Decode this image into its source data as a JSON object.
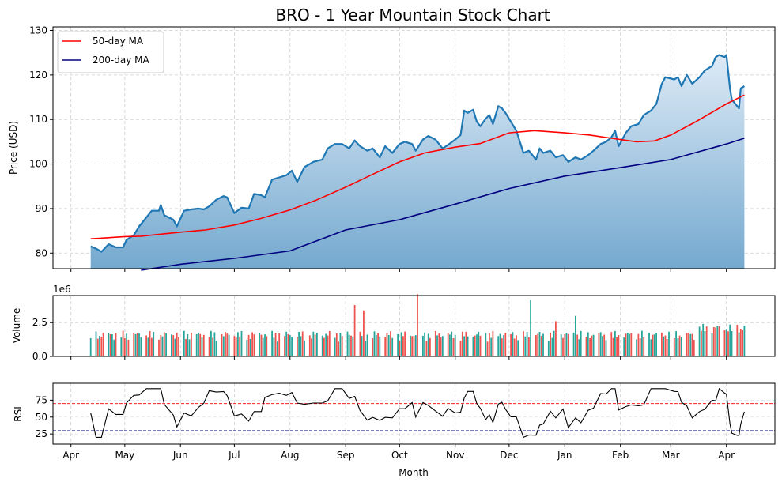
{
  "chart_data": {
    "type": "line",
    "title": "BRO - 1 Year Mountain Stock Chart",
    "xlabel": "Month",
    "month_ticks": [
      {
        "label": "Apr",
        "date": "2024-04-01"
      },
      {
        "label": "May",
        "date": "2024-05-01"
      },
      {
        "label": "Jun",
        "date": "2024-06-01"
      },
      {
        "label": "Jul",
        "date": "2024-07-01"
      },
      {
        "label": "Aug",
        "date": "2024-08-01"
      },
      {
        "label": "Sep",
        "date": "2024-09-01"
      },
      {
        "label": "Oct",
        "date": "2024-10-01"
      },
      {
        "label": "Nov",
        "date": "2024-11-01"
      },
      {
        "label": "Dec",
        "date": "2024-12-01"
      },
      {
        "label": "Jan",
        "date": "2025-01-01"
      },
      {
        "label": "Feb",
        "date": "2025-02-01"
      },
      {
        "label": "Mar",
        "date": "2025-03-01"
      },
      {
        "label": "Apr",
        "date": "2025-04-01"
      }
    ],
    "xlim": [
      "2024-03-22",
      "2025-04-28"
    ],
    "grid": true,
    "price_panel": {
      "ylabel": "Price (USD)",
      "ylim": [
        76.5,
        130.8
      ],
      "yticks": [
        80,
        90,
        100,
        110,
        120,
        130
      ],
      "legend_position": "top-left",
      "close": [
        [
          "2024-04-12",
          81.5
        ],
        [
          "2024-04-15",
          81.0
        ],
        [
          "2024-04-18",
          80.3
        ],
        [
          "2024-04-22",
          82.0
        ],
        [
          "2024-04-26",
          81.3
        ],
        [
          "2024-04-30",
          81.3
        ],
        [
          "2024-05-02",
          83.0
        ],
        [
          "2024-05-06",
          84.0
        ],
        [
          "2024-05-09",
          86.0
        ],
        [
          "2024-05-13",
          88.0
        ],
        [
          "2024-05-16",
          89.5
        ],
        [
          "2024-05-20",
          89.5
        ],
        [
          "2024-05-21",
          90.8
        ],
        [
          "2024-05-23",
          88.5
        ],
        [
          "2024-05-28",
          87.5
        ],
        [
          "2024-05-30",
          86.0
        ],
        [
          "2024-06-03",
          89.5
        ],
        [
          "2024-06-07",
          89.8
        ],
        [
          "2024-06-11",
          90.0
        ],
        [
          "2024-06-14",
          89.8
        ],
        [
          "2024-06-17",
          90.5
        ],
        [
          "2024-06-21",
          92.0
        ],
        [
          "2024-06-25",
          92.8
        ],
        [
          "2024-06-27",
          92.5
        ],
        [
          "2024-07-01",
          89.0
        ],
        [
          "2024-07-05",
          90.2
        ],
        [
          "2024-07-09",
          90.0
        ],
        [
          "2024-07-12",
          93.3
        ],
        [
          "2024-07-16",
          93.0
        ],
        [
          "2024-07-18",
          92.5
        ],
        [
          "2024-07-22",
          96.5
        ],
        [
          "2024-07-26",
          97.0
        ],
        [
          "2024-07-30",
          97.5
        ],
        [
          "2024-08-02",
          98.5
        ],
        [
          "2024-08-05",
          96.0
        ],
        [
          "2024-08-09",
          99.3
        ],
        [
          "2024-08-14",
          100.5
        ],
        [
          "2024-08-19",
          101.0
        ],
        [
          "2024-08-22",
          103.5
        ],
        [
          "2024-08-26",
          104.5
        ],
        [
          "2024-08-30",
          104.5
        ],
        [
          "2024-09-03",
          103.5
        ],
        [
          "2024-09-06",
          105.3
        ],
        [
          "2024-09-09",
          104.0
        ],
        [
          "2024-09-13",
          103.0
        ],
        [
          "2024-09-16",
          103.5
        ],
        [
          "2024-09-20",
          101.5
        ],
        [
          "2024-09-23",
          104.0
        ],
        [
          "2024-09-27",
          102.5
        ],
        [
          "2024-10-01",
          104.5
        ],
        [
          "2024-10-04",
          105.0
        ],
        [
          "2024-10-08",
          104.5
        ],
        [
          "2024-10-10",
          103.0
        ],
        [
          "2024-10-14",
          105.5
        ],
        [
          "2024-10-17",
          106.3
        ],
        [
          "2024-10-21",
          105.5
        ],
        [
          "2024-10-25",
          103.5
        ],
        [
          "2024-10-28",
          104.3
        ],
        [
          "2024-11-01",
          105.5
        ],
        [
          "2024-11-04",
          106.5
        ],
        [
          "2024-11-06",
          112.0
        ],
        [
          "2024-11-08",
          111.5
        ],
        [
          "2024-11-11",
          112.2
        ],
        [
          "2024-11-13",
          109.5
        ],
        [
          "2024-11-15",
          108.5
        ],
        [
          "2024-11-18",
          110.2
        ],
        [
          "2024-11-20",
          111.0
        ],
        [
          "2024-11-22",
          109.0
        ],
        [
          "2024-11-25",
          113.0
        ],
        [
          "2024-11-27",
          112.5
        ],
        [
          "2024-11-29",
          111.5
        ],
        [
          "2024-12-02",
          109.5
        ],
        [
          "2024-12-05",
          107.5
        ],
        [
          "2024-12-09",
          102.5
        ],
        [
          "2024-12-12",
          103.0
        ],
        [
          "2024-12-16",
          101.0
        ],
        [
          "2024-12-18",
          103.5
        ],
        [
          "2024-12-20",
          102.5
        ],
        [
          "2024-12-24",
          103.0
        ],
        [
          "2024-12-27",
          101.5
        ],
        [
          "2024-12-31",
          102.0
        ],
        [
          "2025-01-03",
          100.5
        ],
        [
          "2025-01-07",
          101.5
        ],
        [
          "2025-01-10",
          101.0
        ],
        [
          "2025-01-14",
          102.0
        ],
        [
          "2025-01-17",
          103.0
        ],
        [
          "2025-01-21",
          104.5
        ],
        [
          "2025-01-24",
          105.0
        ],
        [
          "2025-01-27",
          106.0
        ],
        [
          "2025-01-29",
          107.5
        ],
        [
          "2025-01-31",
          104.0
        ],
        [
          "2025-02-04",
          107.0
        ],
        [
          "2025-02-07",
          108.5
        ],
        [
          "2025-02-11",
          109.0
        ],
        [
          "2025-02-14",
          111.0
        ],
        [
          "2025-02-18",
          112.0
        ],
        [
          "2025-02-21",
          113.5
        ],
        [
          "2025-02-24",
          118.0
        ],
        [
          "2025-02-26",
          119.5
        ],
        [
          "2025-03-03",
          119.0
        ],
        [
          "2025-03-05",
          119.5
        ],
        [
          "2025-03-07",
          117.5
        ],
        [
          "2025-03-10",
          120.0
        ],
        [
          "2025-03-13",
          118.0
        ],
        [
          "2025-03-17",
          119.5
        ],
        [
          "2025-03-20",
          121.0
        ],
        [
          "2025-03-24",
          122.0
        ],
        [
          "2025-03-26",
          124.0
        ],
        [
          "2025-03-28",
          124.5
        ],
        [
          "2025-03-31",
          124.0
        ],
        [
          "2025-04-01",
          124.5
        ],
        [
          "2025-04-03",
          117.0
        ],
        [
          "2025-04-04",
          114.5
        ],
        [
          "2025-04-07",
          113.0
        ],
        [
          "2025-04-08",
          112.5
        ],
        [
          "2025-04-09",
          117.0
        ],
        [
          "2025-04-11",
          117.5
        ]
      ],
      "series": [
        {
          "name": "50-day MA",
          "color": "#ff0000",
          "values": [
            [
              "2024-04-12",
              83.2
            ],
            [
              "2024-04-20",
              83.4
            ],
            [
              "2024-05-01",
              83.7
            ],
            [
              "2024-05-10",
              83.8
            ],
            [
              "2024-05-20",
              84.2
            ],
            [
              "2024-06-01",
              84.7
            ],
            [
              "2024-06-15",
              85.2
            ],
            [
              "2024-07-01",
              86.3
            ],
            [
              "2024-07-15",
              87.7
            ],
            [
              "2024-08-01",
              89.7
            ],
            [
              "2024-08-15",
              91.8
            ],
            [
              "2024-09-01",
              94.8
            ],
            [
              "2024-09-15",
              97.5
            ],
            [
              "2024-10-01",
              100.5
            ],
            [
              "2024-10-15",
              102.5
            ],
            [
              "2024-11-01",
              103.8
            ],
            [
              "2024-11-15",
              104.6
            ],
            [
              "2024-12-01",
              107.0
            ],
            [
              "2024-12-15",
              107.5
            ],
            [
              "2025-01-01",
              107.0
            ],
            [
              "2025-01-15",
              106.5
            ],
            [
              "2025-02-01",
              105.5
            ],
            [
              "2025-02-10",
              105.0
            ],
            [
              "2025-02-20",
              105.2
            ],
            [
              "2025-03-01",
              106.5
            ],
            [
              "2025-03-15",
              109.5
            ],
            [
              "2025-04-01",
              113.5
            ],
            [
              "2025-04-11",
              115.5
            ]
          ]
        },
        {
          "name": "200-day MA",
          "color": "#000080",
          "values": [
            [
              "2024-05-10",
              76.0
            ],
            [
              "2024-06-01",
              77.5
            ],
            [
              "2024-07-01",
              78.8
            ],
            [
              "2024-08-01",
              80.5
            ],
            [
              "2024-09-01",
              85.2
            ],
            [
              "2024-10-01",
              87.5
            ],
            [
              "2024-11-01",
              91.0
            ],
            [
              "2024-12-01",
              94.5
            ],
            [
              "2025-01-01",
              97.3
            ],
            [
              "2025-02-01",
              99.2
            ],
            [
              "2025-03-01",
              101.0
            ],
            [
              "2025-04-01",
              104.5
            ],
            [
              "2025-04-11",
              105.8
            ]
          ]
        }
      ]
    },
    "volume_panel": {
      "ylabel": "Volume",
      "scale_label": "1e6",
      "ylim": [
        0,
        4.5
      ],
      "yticks": [
        "0.0",
        "2.5"
      ],
      "up_color": "#26a69a",
      "down_color": "#ef5350"
    },
    "rsi_panel": {
      "ylabel": "RSI",
      "ylim": [
        10,
        100
      ],
      "yticks": [
        25,
        50,
        75
      ],
      "overbought": 70,
      "oversold": 30,
      "overbought_color": "#ff0000",
      "oversold_color": "#000080"
    }
  }
}
